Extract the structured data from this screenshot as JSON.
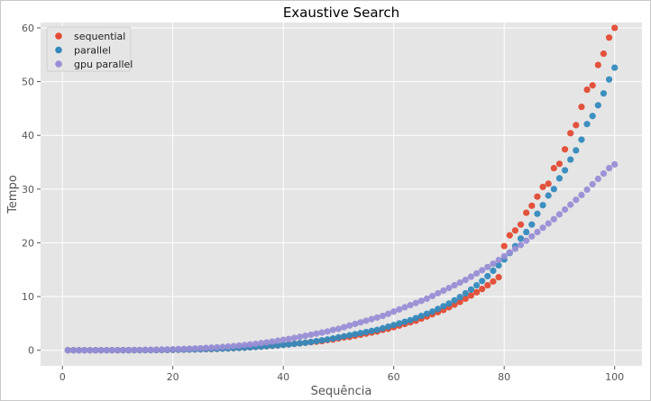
{
  "chart_data": {
    "type": "scatter",
    "title": "Exaustive Search",
    "xlabel": "Sequência",
    "ylabel": "Tempo",
    "xlim": [
      -3.95,
      104.95
    ],
    "ylim": [
      -2.9,
      61.0
    ],
    "xticks": [
      0,
      20,
      40,
      60,
      80,
      100
    ],
    "yticks": [
      0,
      10,
      20,
      30,
      40,
      50,
      60
    ],
    "grid": true,
    "legend_position": "top-left",
    "background_color": "#e5e5e5",
    "x": [
      1,
      2,
      3,
      4,
      5,
      6,
      7,
      8,
      9,
      10,
      11,
      12,
      13,
      14,
      15,
      16,
      17,
      18,
      19,
      20,
      21,
      22,
      23,
      24,
      25,
      26,
      27,
      28,
      29,
      30,
      31,
      32,
      33,
      34,
      35,
      36,
      37,
      38,
      39,
      40,
      41,
      42,
      43,
      44,
      45,
      46,
      47,
      48,
      49,
      50,
      51,
      52,
      53,
      54,
      55,
      56,
      57,
      58,
      59,
      60,
      61,
      62,
      63,
      64,
      65,
      66,
      67,
      68,
      69,
      70,
      71,
      72,
      73,
      74,
      75,
      76,
      77,
      78,
      79,
      80,
      81,
      82,
      83,
      84,
      85,
      86,
      87,
      88,
      89,
      90,
      91,
      92,
      93,
      94,
      95,
      96,
      97,
      98,
      99,
      100
    ],
    "series": [
      {
        "name": "sequential",
        "color": "#e24a33",
        "values": [
          0.0,
          0.0,
          0.0,
          0.0,
          0.0,
          0.0,
          0.0,
          0.0,
          0.0,
          0.01,
          0.01,
          0.01,
          0.02,
          0.02,
          0.03,
          0.04,
          0.05,
          0.06,
          0.07,
          0.08,
          0.1,
          0.12,
          0.14,
          0.16,
          0.18,
          0.21,
          0.24,
          0.27,
          0.31,
          0.35,
          0.39,
          0.44,
          0.49,
          0.55,
          0.61,
          0.68,
          0.75,
          0.83,
          0.91,
          1.0,
          1.1,
          1.2,
          1.3,
          1.4,
          1.5,
          1.6,
          1.7,
          1.9,
          2.0,
          2.2,
          2.4,
          2.5,
          2.7,
          2.9,
          3.1,
          3.3,
          3.5,
          3.8,
          4.0,
          4.3,
          4.6,
          4.9,
          5.2,
          5.5,
          5.9,
          6.3,
          6.7,
          7.1,
          7.5,
          8.0,
          8.5,
          9.0,
          9.6,
          10.2,
          10.8,
          11.4,
          12.1,
          12.8,
          13.6,
          19.4,
          21.4,
          22.3,
          23.4,
          25.6,
          26.9,
          28.6,
          30.4,
          31.0,
          33.9,
          34.7,
          37.4,
          40.4,
          41.9,
          45.3,
          48.5,
          49.3,
          53.1,
          55.2,
          58.2,
          60.0
        ]
      },
      {
        "name": "parallel",
        "color": "#348abd",
        "values": [
          0.0,
          0.0,
          0.0,
          0.0,
          0.0,
          0.0,
          0.0,
          0.0,
          0.0,
          0.01,
          0.01,
          0.01,
          0.02,
          0.02,
          0.03,
          0.04,
          0.05,
          0.06,
          0.07,
          0.08,
          0.1,
          0.12,
          0.14,
          0.16,
          0.18,
          0.21,
          0.24,
          0.27,
          0.31,
          0.35,
          0.39,
          0.44,
          0.49,
          0.55,
          0.61,
          0.68,
          0.75,
          0.83,
          0.91,
          1.0,
          1.1,
          1.2,
          1.3,
          1.4,
          1.55,
          1.7,
          1.85,
          2.0,
          2.2,
          2.4,
          2.6,
          2.8,
          3.0,
          3.2,
          3.4,
          3.6,
          3.8,
          4.1,
          4.4,
          4.7,
          5.0,
          5.3,
          5.6,
          6.0,
          6.4,
          6.8,
          7.2,
          7.7,
          8.2,
          8.7,
          9.3,
          9.9,
          10.6,
          11.3,
          12.1,
          12.9,
          13.8,
          14.8,
          15.8,
          16.9,
          18.1,
          19.4,
          20.8,
          22.0,
          23.4,
          25.4,
          27.0,
          28.8,
          30.0,
          32.0,
          33.5,
          35.5,
          37.2,
          39.2,
          42.1,
          43.6,
          45.6,
          47.8,
          50.4,
          52.6
        ]
      },
      {
        "name": "gpu parallel",
        "color": "#988ed5",
        "values": [
          0.0,
          0.0,
          0.0,
          0.0,
          0.01,
          0.01,
          0.01,
          0.02,
          0.02,
          0.03,
          0.04,
          0.05,
          0.06,
          0.07,
          0.08,
          0.1,
          0.12,
          0.14,
          0.16,
          0.19,
          0.22,
          0.25,
          0.29,
          0.33,
          0.38,
          0.43,
          0.49,
          0.55,
          0.62,
          0.7,
          0.78,
          0.87,
          0.97,
          1.08,
          1.2,
          1.33,
          1.47,
          1.62,
          1.78,
          1.95,
          2.1,
          2.3,
          2.5,
          2.7,
          2.9,
          3.1,
          3.3,
          3.5,
          3.8,
          4.0,
          4.3,
          4.6,
          4.9,
          5.2,
          5.5,
          5.8,
          6.1,
          6.4,
          6.8,
          7.2,
          7.6,
          8.0,
          8.4,
          8.8,
          9.2,
          9.6,
          10.1,
          10.6,
          11.1,
          11.6,
          12.1,
          12.6,
          13.1,
          13.7,
          14.3,
          14.9,
          15.5,
          16.1,
          16.8,
          17.5,
          18.2,
          18.9,
          19.6,
          20.4,
          21.2,
          22.0,
          22.8,
          23.6,
          24.4,
          25.3,
          26.2,
          27.1,
          28.0,
          28.9,
          29.9,
          30.9,
          31.9,
          32.9,
          33.9,
          34.6
        ]
      }
    ]
  }
}
